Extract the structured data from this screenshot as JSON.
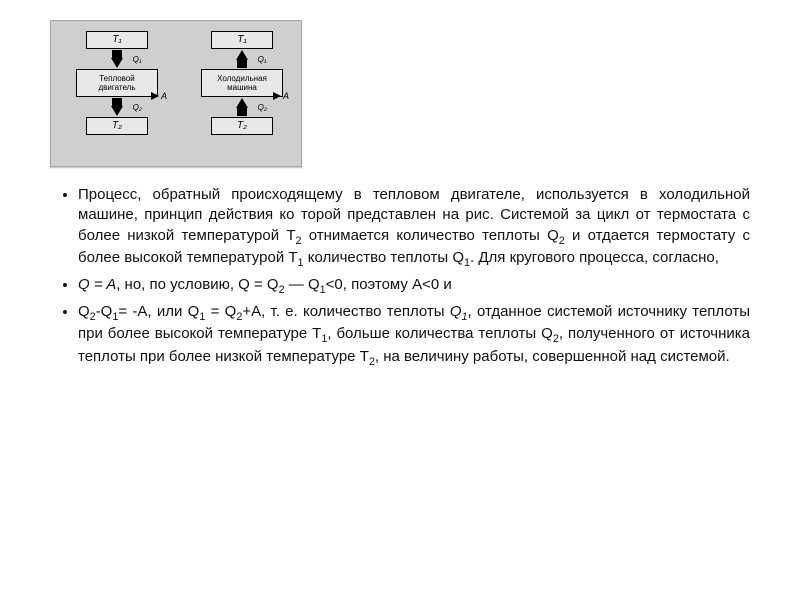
{
  "figure": {
    "left": {
      "top": "T₁",
      "q1": "Q₁",
      "mid": "Тепловой\nдвигатель",
      "q2": "Q₂",
      "bottom": "T₂",
      "side": "A"
    },
    "right": {
      "top": "T₁",
      "q1": "Q₁",
      "mid": "Холодильная\nмашина",
      "q2": "Q₂",
      "bottom": "T₂",
      "side": "A"
    }
  },
  "bullets": {
    "b1_prefix": "Процесс, обратный происходящему в тепловом двигателе, используется в холодильной машине, принцип действия ко торой представлен на рис. Системой за цикл от термостата с более низкой температурой T",
    "b1_mid1": " отнимается количество теплоты Q",
    "b1_mid2": " и отдается термостату с более высокой температурой T",
    "b1_mid3": " количество теплоты Q",
    "b1_suffix": ". Для кругового процесса, согласно,",
    "b2_prefix": "Q = A",
    "b2_mid1": ", но, по условию, Q = Q",
    "b2_mid2": " — Q",
    "b2_suffix": "<0, поэтому А<0 и",
    "b3_p1": "Q",
    "b3_p2": "-Q",
    "b3_p3": "= -А, или Q",
    "b3_p4": " = Q",
    "b3_p5": "+A, т. е. количество теплоты ",
    "b3_p5b": "Q",
    "b3_p6": ", отданное системой источнику теплоты при более высокой температуре T",
    "b3_p7": ", больше количества теплоты Q",
    "b3_p8": ", полученного от источника теплоты при более низкой температуре T",
    "b3_p9": ", на величину работы, совершенной над системой."
  },
  "subs": {
    "s1": "1",
    "s2": "2"
  }
}
